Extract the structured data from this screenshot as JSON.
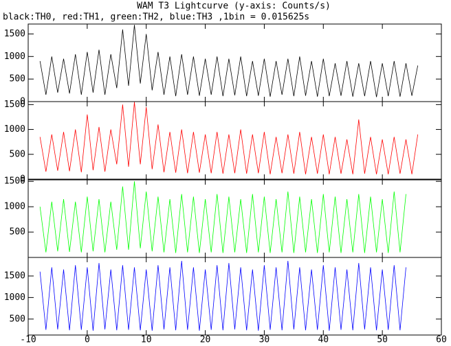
{
  "chart_data": {
    "type": "line",
    "title": "WAM T3 Lightcurve (y-axis: Counts/s)",
    "subtitle": "black:TH0, red:TH1, green:TH2, blue:TH3 ,1bin = 0.015625s",
    "xlim": [
      -10,
      60
    ],
    "xticks": [
      -10,
      0,
      10,
      20,
      30,
      40,
      50,
      60
    ],
    "x": [
      -8,
      -7,
      -6,
      -5,
      -4,
      -3,
      -2,
      -1,
      0,
      1,
      2,
      3,
      4,
      5,
      6,
      7,
      8,
      9,
      10,
      11,
      12,
      13,
      14,
      15,
      16,
      17,
      18,
      19,
      20,
      21,
      22,
      23,
      24,
      25,
      26,
      27,
      28,
      29,
      30,
      31,
      32,
      33,
      34,
      35,
      36,
      37,
      38,
      39,
      40,
      41,
      42,
      43,
      44,
      45,
      46,
      47,
      48,
      49,
      50,
      51,
      52,
      53,
      54,
      55,
      56
    ],
    "panels": [
      {
        "color": "#000000",
        "ylim": [
          0,
          1720
        ],
        "yticks": [
          0,
          500,
          1000,
          1500
        ],
        "values": [
          900,
          150,
          1000,
          200,
          950,
          180,
          1050,
          150,
          1100,
          200,
          1150,
          150,
          1050,
          300,
          1600,
          350,
          1700,
          400,
          1500,
          250,
          1100,
          150,
          1000,
          120,
          1050,
          150,
          1000,
          130,
          950,
          150,
          1000,
          120,
          950,
          140,
          1000,
          120,
          900,
          130,
          950,
          110,
          900,
          150,
          950,
          120,
          1000,
          130,
          900,
          110,
          950,
          120,
          850,
          130,
          900,
          110,
          850,
          120,
          900,
          100,
          850,
          120,
          900,
          110,
          850,
          130,
          800
        ]
      },
      {
        "color": "#ff0000",
        "ylim": [
          0,
          1560
        ],
        "yticks": [
          0,
          500,
          1000,
          1500
        ],
        "values": [
          850,
          150,
          900,
          170,
          950,
          160,
          1000,
          140,
          1300,
          180,
          1050,
          150,
          1000,
          300,
          1500,
          250,
          1550,
          300,
          1450,
          200,
          1100,
          140,
          950,
          130,
          1000,
          120,
          950,
          130,
          900,
          120,
          950,
          110,
          900,
          120,
          1000,
          110,
          900,
          120,
          950,
          100,
          850,
          120,
          900,
          110,
          950,
          100,
          850,
          110,
          900,
          100,
          850,
          110,
          800,
          100,
          1200,
          110,
          850,
          100,
          800,
          100,
          850,
          110,
          800,
          100,
          900
        ]
      },
      {
        "color": "#00ff00",
        "ylim": [
          0,
          1530
        ],
        "yticks": [
          500,
          1000,
          1500
        ],
        "values": [
          1000,
          100,
          1100,
          120,
          1150,
          110,
          1100,
          100,
          1200,
          120,
          1150,
          100,
          1100,
          150,
          1400,
          150,
          1500,
          180,
          1300,
          120,
          1200,
          100,
          1150,
          90,
          1250,
          100,
          1200,
          90,
          1150,
          100,
          1250,
          90,
          1200,
          100,
          1150,
          90,
          1250,
          100,
          1200,
          90,
          1150,
          100,
          1300,
          90,
          1200,
          100,
          1150,
          90,
          1250,
          100,
          1200,
          90,
          1150,
          100,
          1250,
          90,
          1200,
          100,
          1150,
          90,
          1300,
          100,
          1250
        ]
      },
      {
        "color": "#0000ff",
        "ylim": [
          130,
          1930
        ],
        "yticks": [
          500,
          1000,
          1500
        ],
        "values": [
          1600,
          250,
          1700,
          260,
          1650,
          240,
          1750,
          250,
          1700,
          230,
          1800,
          260,
          1650,
          240,
          1750,
          250,
          1700,
          240,
          1650,
          230,
          1750,
          260,
          1700,
          240,
          1850,
          250,
          1700,
          230,
          1650,
          250,
          1750,
          240,
          1800,
          260,
          1700,
          240,
          1650,
          230,
          1750,
          250,
          1700,
          240,
          1850,
          260,
          1700,
          240,
          1650,
          250,
          1750,
          230,
          1700,
          250,
          1650,
          240,
          1800,
          260,
          1700,
          240,
          1650,
          250,
          1750,
          240,
          1700
        ]
      }
    ]
  }
}
